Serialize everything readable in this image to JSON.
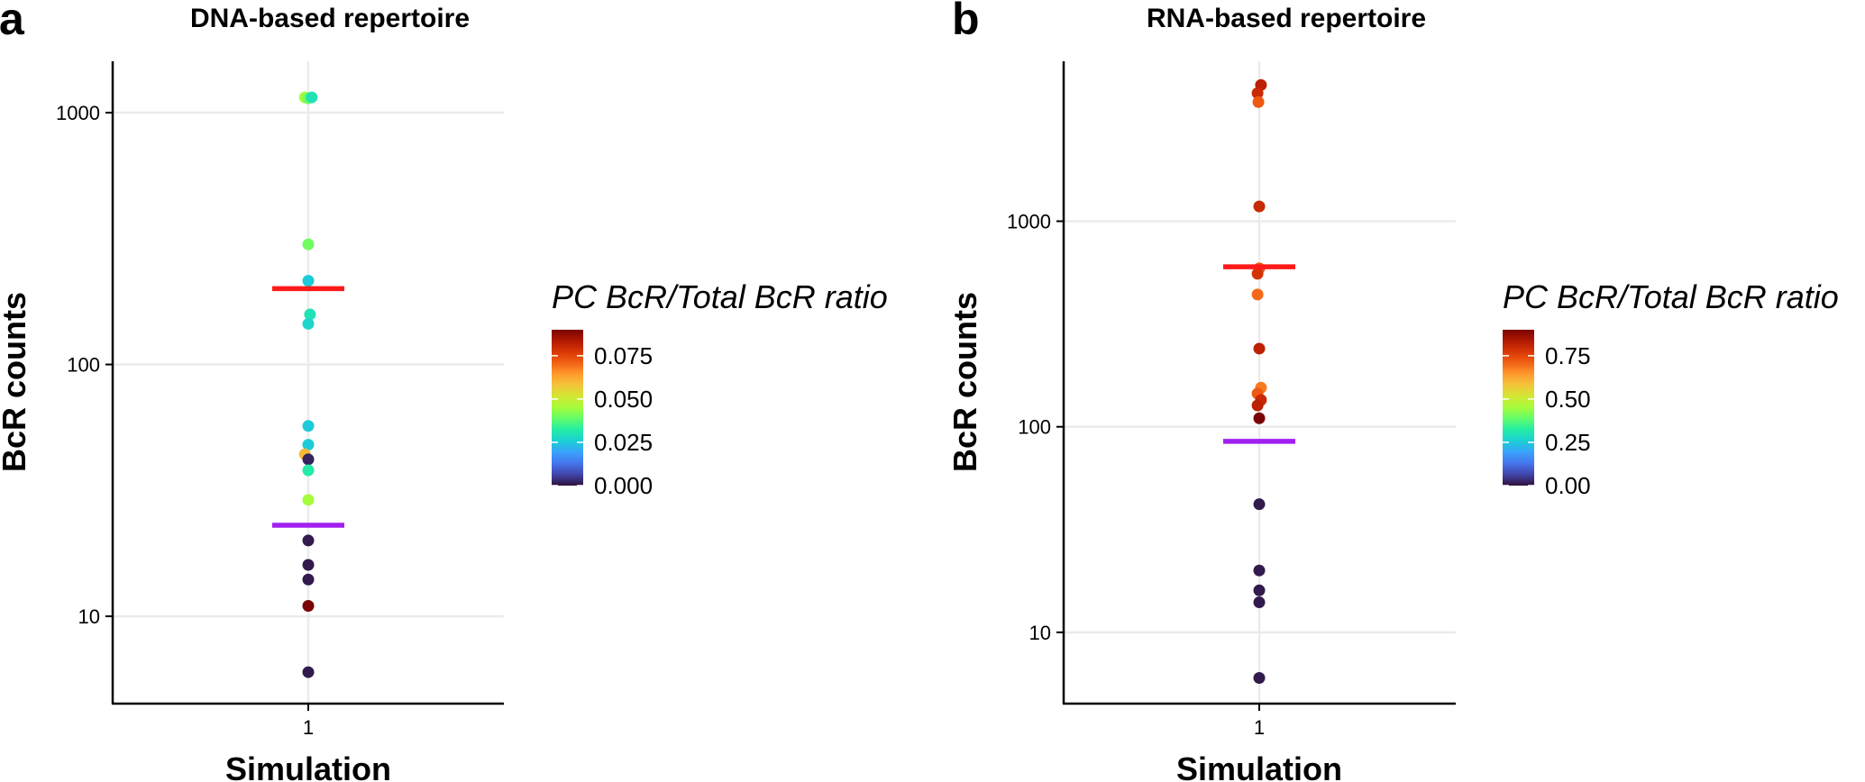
{
  "colors": {
    "median_line": "#ff1a1a",
    "threshold_line": "#a020f0",
    "turbo": [
      "#30123b",
      "#4145ab",
      "#4675ed",
      "#39a2fc",
      "#1bcfd4",
      "#24eca6",
      "#61fc6c",
      "#a4fc3b",
      "#d1e834",
      "#f3c63a",
      "#fe9b2d",
      "#f36315",
      "#d93806",
      "#b11901",
      "#7a0403"
    ]
  },
  "chart_data": [
    {
      "type": "scatter",
      "panel_letter": "a",
      "title": "DNA-based repertoire",
      "xlabel": "Simulation",
      "ylabel": "BcR counts",
      "x_categories": [
        "1"
      ],
      "yscale": "log10",
      "ylim": [
        4.5,
        1600
      ],
      "yticks": [
        10,
        100,
        1000
      ],
      "ytick_labels": [
        "10",
        "100",
        "1000"
      ],
      "median_line_y": 200,
      "threshold_line_y": 23,
      "legend": {
        "title": "PC BcR/Total BcR ratio",
        "range": [
          0,
          0.09
        ],
        "ticks": [
          0,
          0.025,
          0.05,
          0.075
        ],
        "tick_labels": [
          "0.000",
          "0.025",
          "0.050",
          "0.075"
        ]
      },
      "points": [
        {
          "x": 0.98,
          "y": 1150,
          "ratio": 0.045
        },
        {
          "x": 1.0,
          "y": 1140,
          "ratio": 0.04
        },
        {
          "x": 1.02,
          "y": 1150,
          "ratio": 0.03
        },
        {
          "x": 1.0,
          "y": 300,
          "ratio": 0.04
        },
        {
          "x": 1.0,
          "y": 215,
          "ratio": 0.025
        },
        {
          "x": 1.01,
          "y": 158,
          "ratio": 0.03
        },
        {
          "x": 1.0,
          "y": 145,
          "ratio": 0.027
        },
        {
          "x": 1.0,
          "y": 57,
          "ratio": 0.025
        },
        {
          "x": 1.0,
          "y": 48,
          "ratio": 0.025
        },
        {
          "x": 0.98,
          "y": 44,
          "ratio": 0.06
        },
        {
          "x": 1.0,
          "y": 42,
          "ratio": 0.002
        },
        {
          "x": 1.0,
          "y": 38,
          "ratio": 0.032
        },
        {
          "x": 1.0,
          "y": 29,
          "ratio": 0.045
        },
        {
          "x": 1.0,
          "y": 20,
          "ratio": 0.001
        },
        {
          "x": 1.0,
          "y": 16,
          "ratio": 0.001
        },
        {
          "x": 1.0,
          "y": 14,
          "ratio": 0.001
        },
        {
          "x": 1.0,
          "y": 11,
          "ratio": 0.09
        },
        {
          "x": 1.0,
          "y": 6,
          "ratio": 0.001
        }
      ]
    },
    {
      "type": "scatter",
      "panel_letter": "b",
      "title": "RNA-based repertoire",
      "xlabel": "Simulation",
      "ylabel": "BcR counts",
      "x_categories": [
        "1"
      ],
      "yscale": "log10",
      "ylim": [
        4.5,
        6000
      ],
      "yticks": [
        10,
        100,
        1000
      ],
      "ytick_labels": [
        "10",
        "100",
        "1000"
      ],
      "median_line_y": 600,
      "threshold_line_y": 85,
      "legend": {
        "title": "PC BcR/Total BcR ratio",
        "range": [
          0,
          0.9
        ],
        "ticks": [
          0,
          0.25,
          0.5,
          0.75
        ],
        "tick_labels": [
          "0.00",
          "0.25",
          "0.50",
          "0.75"
        ]
      },
      "points": [
        {
          "x": 1.01,
          "y": 4600,
          "ratio": 0.82
        },
        {
          "x": 0.99,
          "y": 4200,
          "ratio": 0.8
        },
        {
          "x": 0.995,
          "y": 3800,
          "ratio": 0.72
        },
        {
          "x": 1.0,
          "y": 1180,
          "ratio": 0.8
        },
        {
          "x": 1.0,
          "y": 590,
          "ratio": 0.72
        },
        {
          "x": 0.99,
          "y": 555,
          "ratio": 0.78
        },
        {
          "x": 0.99,
          "y": 440,
          "ratio": 0.7
        },
        {
          "x": 1.0,
          "y": 240,
          "ratio": 0.82
        },
        {
          "x": 1.01,
          "y": 155,
          "ratio": 0.68
        },
        {
          "x": 0.99,
          "y": 145,
          "ratio": 0.72
        },
        {
          "x": 1.01,
          "y": 135,
          "ratio": 0.8
        },
        {
          "x": 0.99,
          "y": 127,
          "ratio": 0.82
        },
        {
          "x": 1.0,
          "y": 110,
          "ratio": 0.9
        },
        {
          "x": 1.0,
          "y": 42,
          "ratio": 0.01
        },
        {
          "x": 1.0,
          "y": 20,
          "ratio": 0.01
        },
        {
          "x": 1.0,
          "y": 16,
          "ratio": 0.01
        },
        {
          "x": 1.0,
          "y": 14,
          "ratio": 0.01
        },
        {
          "x": 1.0,
          "y": 6,
          "ratio": 0.01
        }
      ]
    }
  ]
}
